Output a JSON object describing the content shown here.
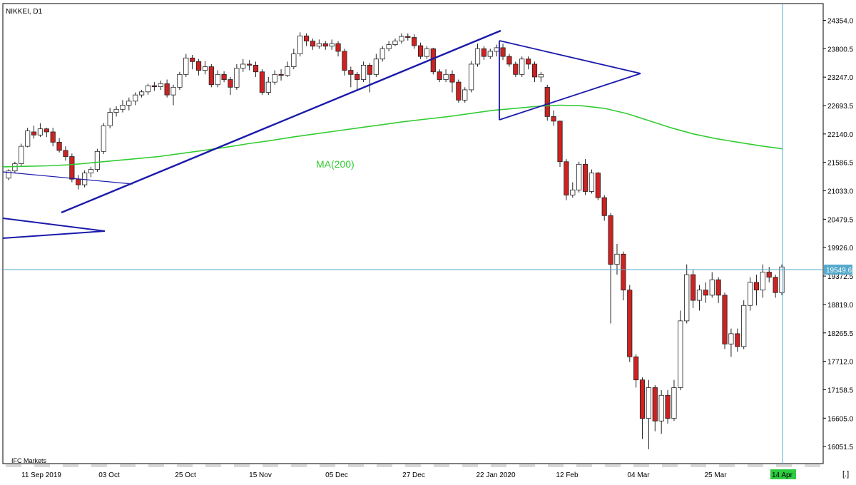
{
  "symbol_title": "NIKKEI, D1",
  "watermark": "IFC Markets",
  "ma_label": "MA(200)",
  "current_price_label": "19549.6",
  "current_date_label": "14 Apr",
  "corner_icon": "[.]",
  "colors": {
    "up_candle": "#ffffff",
    "down_candle": "#cc2222",
    "candle_outline": "#222222",
    "ma_line": "#33cc33",
    "trend_lines": "#1a1aaa",
    "crosshair": "#55aacc",
    "date_badge": "#2ecc40",
    "grid_band": "#d9d9d9"
  },
  "chart_data": {
    "type": "candlestick",
    "title": "NIKKEI, D1",
    "y_ticks": [
      "24354.0",
      "23800.5",
      "23247.0",
      "22693.5",
      "22140.0",
      "21586.5",
      "21033.0",
      "20479.5",
      "19926.0",
      "19372.5",
      "18819.0",
      "18265.5",
      "17712.0",
      "17158.5",
      "16605.0",
      "16051.5"
    ],
    "x_ticks": [
      "11 Sep 2019",
      "03 Oct",
      "25 Oct",
      "15 Nov",
      "05 Dec",
      "27 Dec",
      "22 Jan 2020",
      "12 Feb",
      "04 Mar",
      "25 Mar",
      "14 Apr"
    ],
    "ylim": [
      15720,
      24680
    ],
    "ma_series": {
      "name": "MA(200)",
      "values": [
        21500,
        21510,
        21520,
        21540,
        21580,
        21620,
        21660,
        21700,
        21760,
        21820,
        21880,
        21950,
        22010,
        22080,
        22140,
        22200,
        22260,
        22320,
        22380,
        22430,
        22480,
        22540,
        22600,
        22640,
        22680,
        22700,
        22690,
        22640,
        22540,
        22400,
        22260,
        22140,
        22050,
        21980,
        21910,
        21850
      ]
    },
    "candles": [
      [
        21280,
        21420,
        21240,
        21450
      ],
      [
        21420,
        21560,
        21380,
        21600
      ],
      [
        21560,
        21900,
        21500,
        21950
      ],
      [
        21900,
        22200,
        21880,
        22260
      ],
      [
        22180,
        22120,
        22050,
        22300
      ],
      [
        22120,
        22240,
        22080,
        22350
      ],
      [
        22240,
        22180,
        22080,
        22260
      ],
      [
        22180,
        21980,
        21900,
        22260
      ],
      [
        21980,
        21820,
        21780,
        22060
      ],
      [
        21820,
        21700,
        21620,
        21900
      ],
      [
        21700,
        21260,
        21200,
        21760
      ],
      [
        21260,
        21150,
        21060,
        21340
      ],
      [
        21150,
        21380,
        21100,
        21430
      ],
      [
        21380,
        21450,
        21300,
        21500
      ],
      [
        21450,
        21800,
        21400,
        21850
      ],
      [
        21800,
        22300,
        21750,
        22350
      ],
      [
        22300,
        22560,
        22250,
        22650
      ],
      [
        22560,
        22620,
        22480,
        22680
      ],
      [
        22620,
        22700,
        22560,
        22800
      ],
      [
        22700,
        22780,
        22600,
        22850
      ],
      [
        22780,
        22900,
        22700,
        22950
      ],
      [
        22900,
        22960,
        22850,
        23000
      ],
      [
        22960,
        23080,
        22900,
        23120
      ],
      [
        23080,
        23060,
        22980,
        23150
      ],
      [
        23060,
        23120,
        23000,
        23180
      ],
      [
        23120,
        22900,
        22850,
        23200
      ],
      [
        22900,
        23050,
        22700,
        23100
      ],
      [
        23050,
        23300,
        23000,
        23350
      ],
      [
        23300,
        23620,
        23250,
        23700
      ],
      [
        23620,
        23550,
        23400,
        23680
      ],
      [
        23550,
        23380,
        23280,
        23600
      ],
      [
        23380,
        23450,
        23300,
        23560
      ],
      [
        23450,
        23100,
        23050,
        23500
      ],
      [
        23100,
        23300,
        23050,
        23380
      ],
      [
        23300,
        23200,
        23150,
        23360
      ],
      [
        23200,
        23050,
        22900,
        23250
      ],
      [
        23050,
        23420,
        23000,
        23500
      ],
      [
        23420,
        23500,
        23350,
        23600
      ],
      [
        23500,
        23480,
        23380,
        23580
      ],
      [
        23480,
        23350,
        23250,
        23550
      ],
      [
        23350,
        22950,
        22900,
        23400
      ],
      [
        22950,
        23150,
        22900,
        23250
      ],
      [
        23150,
        23300,
        23100,
        23380
      ],
      [
        23300,
        23280,
        23180,
        23400
      ],
      [
        23280,
        23450,
        23250,
        23550
      ],
      [
        23450,
        23700,
        23400,
        23800
      ],
      [
        23700,
        24050,
        23650,
        24120
      ],
      [
        24050,
        23950,
        23850,
        24100
      ],
      [
        23950,
        23850,
        23780,
        24000
      ],
      [
        23850,
        23900,
        23800,
        23980
      ],
      [
        23900,
        23850,
        23780,
        23950
      ],
      [
        23850,
        23900,
        23780,
        23980
      ],
      [
        23900,
        23750,
        23650,
        23950
      ],
      [
        23750,
        23380,
        23280,
        23800
      ],
      [
        23380,
        23300,
        23050,
        23450
      ],
      [
        23300,
        23200,
        23000,
        23350
      ],
      [
        23200,
        23480,
        23150,
        23550
      ],
      [
        23480,
        23300,
        22950,
        23520
      ],
      [
        23300,
        23600,
        23250,
        23700
      ],
      [
        23600,
        23800,
        23550,
        23850
      ],
      [
        23800,
        23880,
        23750,
        23950
      ],
      [
        23880,
        23950,
        23850,
        24000
      ],
      [
        23950,
        24040,
        23900,
        24100
      ],
      [
        24040,
        24020,
        23960,
        24100
      ],
      [
        24020,
        23860,
        23800,
        24080
      ],
      [
        23860,
        23650,
        23600,
        23920
      ],
      [
        23650,
        23800,
        23600,
        23850
      ],
      [
        23800,
        23350,
        23300,
        23820
      ],
      [
        23350,
        23200,
        23150,
        23400
      ],
      [
        23200,
        23300,
        23150,
        23400
      ],
      [
        23300,
        23150,
        22950,
        23380
      ],
      [
        23150,
        22800,
        22750,
        23200
      ],
      [
        22800,
        23000,
        22750,
        23050
      ],
      [
        23000,
        23500,
        22950,
        23560
      ],
      [
        23500,
        23800,
        23450,
        23900
      ],
      [
        23800,
        23650,
        23580,
        23850
      ],
      [
        23650,
        23750,
        23600,
        23800
      ],
      [
        23750,
        23820,
        23650,
        23880
      ],
      [
        23820,
        23650,
        23580,
        23900
      ],
      [
        23650,
        23500,
        23450,
        23700
      ],
      [
        23500,
        23300,
        23250,
        23550
      ],
      [
        23300,
        23600,
        23250,
        23650
      ],
      [
        23600,
        23500,
        23400,
        23650
      ],
      [
        23500,
        23250,
        23150,
        23550
      ],
      [
        23250,
        23300,
        23150,
        23350
      ],
      [
        23050,
        22480,
        22400,
        23100
      ],
      [
        22480,
        22390,
        22300,
        22600
      ],
      [
        22390,
        21600,
        21500,
        22400
      ],
      [
        21600,
        20950,
        20850,
        21650
      ],
      [
        20950,
        21050,
        20900,
        21200
      ],
      [
        21050,
        21550,
        21000,
        21600
      ],
      [
        21550,
        21020,
        20950,
        21650
      ],
      [
        21020,
        21380,
        20980,
        21450
      ],
      [
        21380,
        20900,
        20850,
        21400
      ],
      [
        20900,
        20550,
        20450,
        20950
      ],
      [
        20550,
        19600,
        18450,
        20600
      ],
      [
        19600,
        19800,
        19400,
        20000
      ],
      [
        19800,
        19100,
        18900,
        19850
      ],
      [
        19100,
        17800,
        17700,
        19200
      ],
      [
        17800,
        17350,
        17200,
        17850
      ],
      [
        17350,
        16600,
        16200,
        17400
      ],
      [
        16600,
        17200,
        16000,
        17350
      ],
      [
        17200,
        16550,
        16350,
        17250
      ],
      [
        16550,
        17050,
        16300,
        17150
      ],
      [
        17050,
        16600,
        16500,
        17150
      ],
      [
        16600,
        17200,
        16550,
        17350
      ],
      [
        17200,
        18500,
        17150,
        18700
      ],
      [
        18500,
        19400,
        18450,
        19600
      ],
      [
        19400,
        18900,
        18750,
        19500
      ],
      [
        18900,
        19100,
        18700,
        19200
      ],
      [
        19100,
        19000,
        18850,
        19250
      ],
      [
        19000,
        19300,
        18950,
        19450
      ],
      [
        19300,
        19000,
        18850,
        19350
      ],
      [
        19000,
        18050,
        17950,
        19050
      ],
      [
        18050,
        18250,
        17800,
        18350
      ],
      [
        18250,
        18000,
        17900,
        18350
      ],
      [
        18000,
        18800,
        17950,
        18900
      ],
      [
        18800,
        19250,
        18700,
        19350
      ],
      [
        19250,
        19100,
        18800,
        19400
      ],
      [
        19100,
        19450,
        18950,
        19600
      ],
      [
        19450,
        19350,
        19250,
        19550
      ],
      [
        19350,
        19050,
        18950,
        19400
      ],
      [
        19050,
        19550,
        19000,
        19600
      ]
    ]
  }
}
